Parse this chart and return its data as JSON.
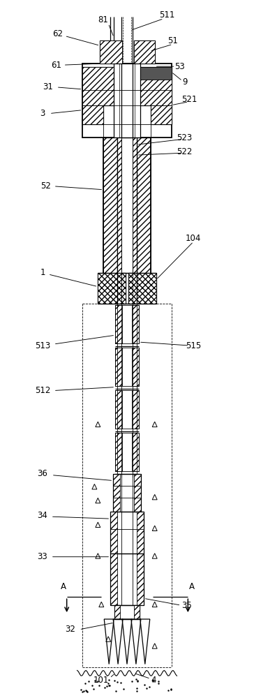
{
  "bg_color": "#ffffff",
  "fig_width": 3.64,
  "fig_height": 10.0,
  "dpi": 100
}
